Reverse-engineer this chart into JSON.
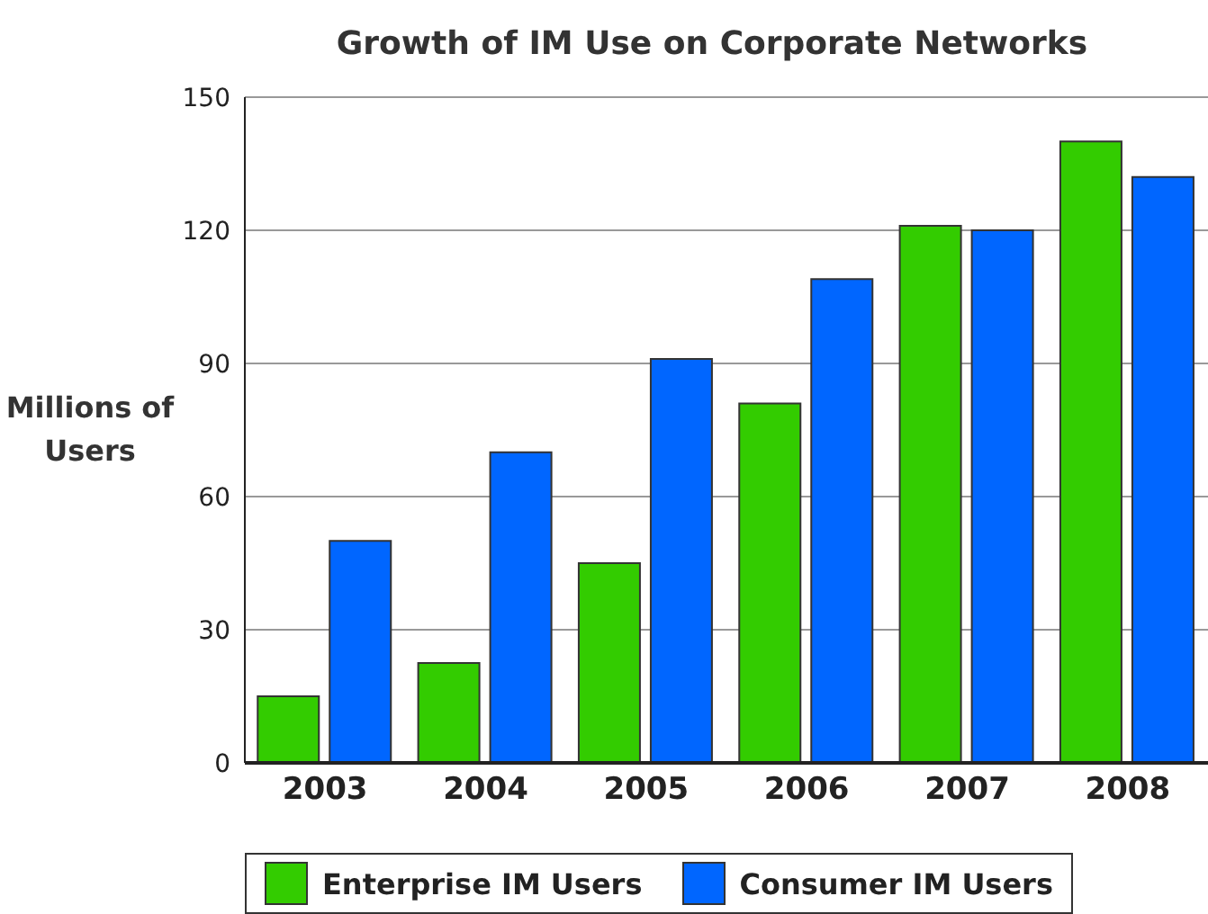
{
  "chart_data": {
    "type": "bar",
    "title": "Growth of IM Use on Corporate Networks",
    "ylabel": "Millions of Users",
    "categories": [
      "2003",
      "2004",
      "2005",
      "2006",
      "2007",
      "2008"
    ],
    "series": [
      {
        "name": "Enterprise IM Users",
        "color": "#33cc00",
        "values": [
          15,
          22.5,
          45,
          81,
          121,
          140
        ]
      },
      {
        "name": "Consumer IM Users",
        "color": "#0066ff",
        "values": [
          50,
          70,
          91,
          109,
          120,
          132
        ]
      }
    ],
    "ylim": [
      0,
      150
    ],
    "yticks": [
      0,
      30,
      60,
      90,
      120,
      150
    ],
    "grid": "y",
    "legend": "bottom"
  }
}
